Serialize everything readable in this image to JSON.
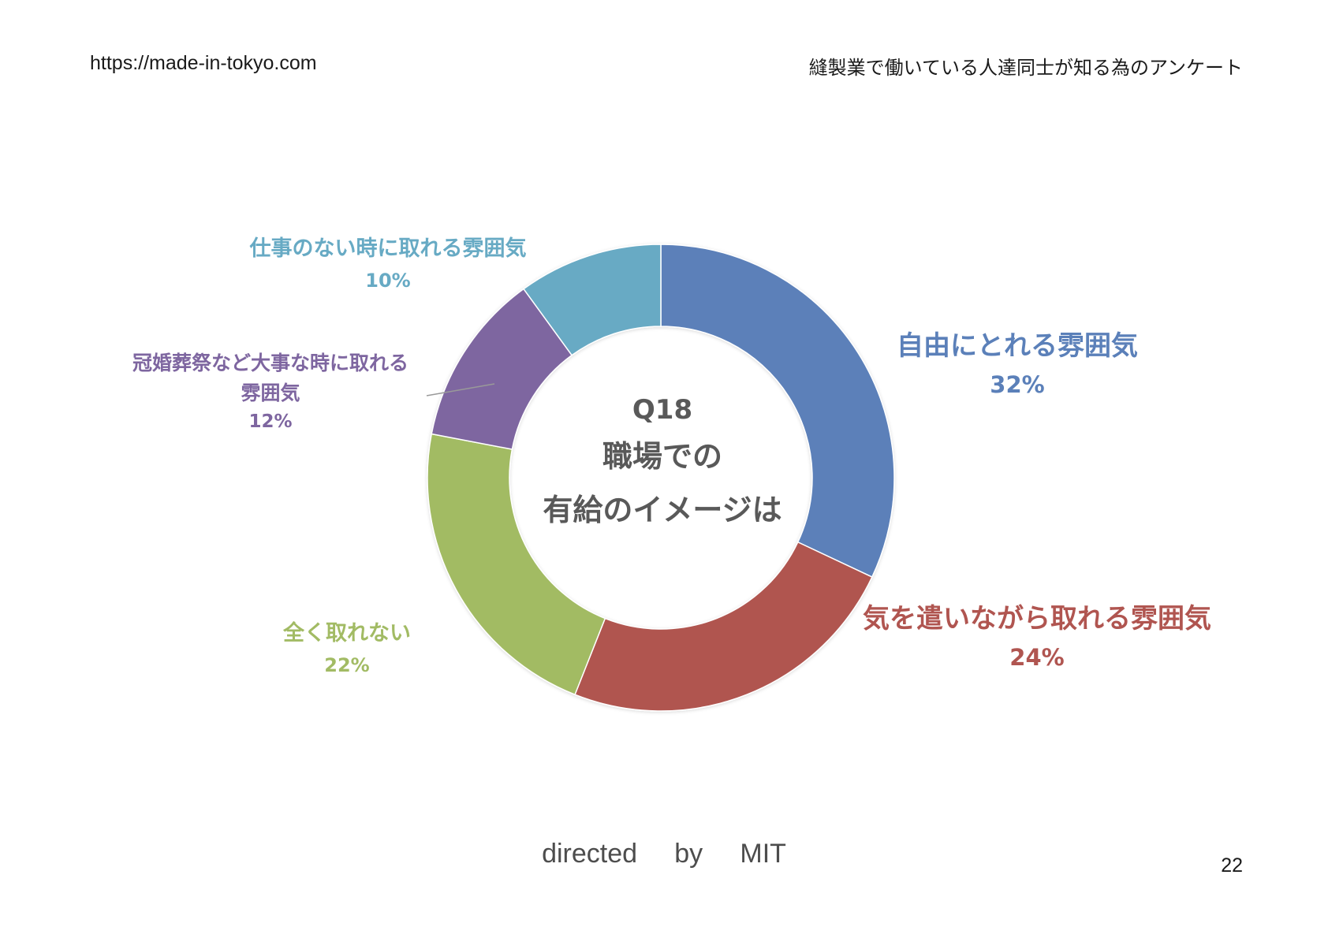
{
  "header": {
    "url": "https://made-in-tokyo.com",
    "survey_title": "縫製業で働いている人達同士が知る為のアンケート"
  },
  "chart_data": {
    "type": "donut",
    "title_lines": [
      "Q18",
      "職場での",
      "有給のイメージは"
    ],
    "slices": [
      {
        "label": "自由にとれる雰囲気",
        "value": 32,
        "display": "32%",
        "color": "#5b80b9"
      },
      {
        "label": "気を遣いながら取れる雰囲気",
        "value": 24,
        "display": "24%",
        "color": "#b05550"
      },
      {
        "label": "全く取れない",
        "value": 22,
        "display": "22%",
        "color": "#a2bb64"
      },
      {
        "label": "冠婚葬祭など大事な時に取れる雰囲気",
        "label_lines": [
          "冠婚葬祭など大事な時に取れる",
          "雰囲気"
        ],
        "value": 12,
        "display": "12%",
        "color": "#7e66a0"
      },
      {
        "label": "仕事のない時に取れる雰囲気",
        "value": 10,
        "display": "10%",
        "color": "#67aac4"
      }
    ]
  },
  "footer": {
    "credit": "directed     by     MIT",
    "page_number": "22"
  }
}
